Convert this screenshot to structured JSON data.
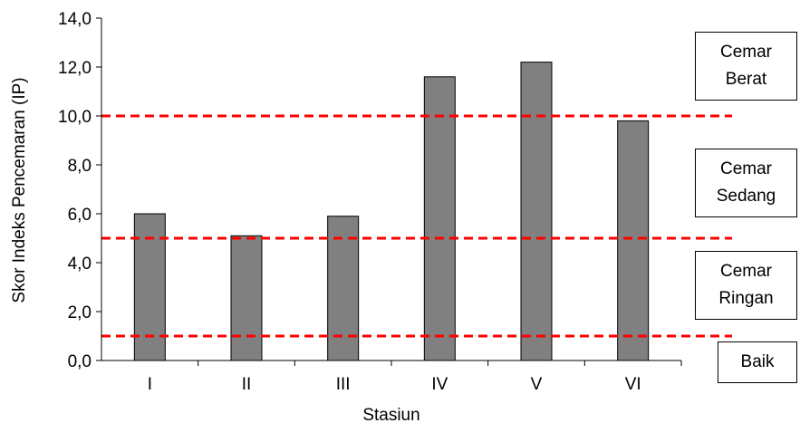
{
  "chart_data": {
    "type": "bar",
    "xlabel": "Stasiun",
    "ylabel": "Skor Indeks Pencemaran (IP)",
    "categories": [
      "I",
      "II",
      "III",
      "IV",
      "V",
      "VI"
    ],
    "values": [
      6.0,
      5.1,
      5.9,
      11.6,
      12.2,
      9.8
    ],
    "ylim": [
      0,
      14
    ],
    "yticks": [
      "0,0",
      "2,0",
      "4,0",
      "6,0",
      "8,0",
      "10,0",
      "12,0",
      "14,0"
    ],
    "grid": false,
    "bar_color": "#808080",
    "thresholds": [
      {
        "value": 1.0,
        "color": "#ff0000",
        "style": "dashed"
      },
      {
        "value": 5.0,
        "color": "#ff0000",
        "style": "dashed"
      },
      {
        "value": 10.0,
        "color": "#ff0000",
        "style": "dashed"
      }
    ],
    "annotations": [
      {
        "key": "berat",
        "text": "Cemar\nBerat"
      },
      {
        "key": "sedang",
        "text": "Cemar\nSedang"
      },
      {
        "key": "ringan",
        "text": "Cemar\nRingan"
      },
      {
        "key": "baik",
        "text": "Baik"
      }
    ]
  }
}
